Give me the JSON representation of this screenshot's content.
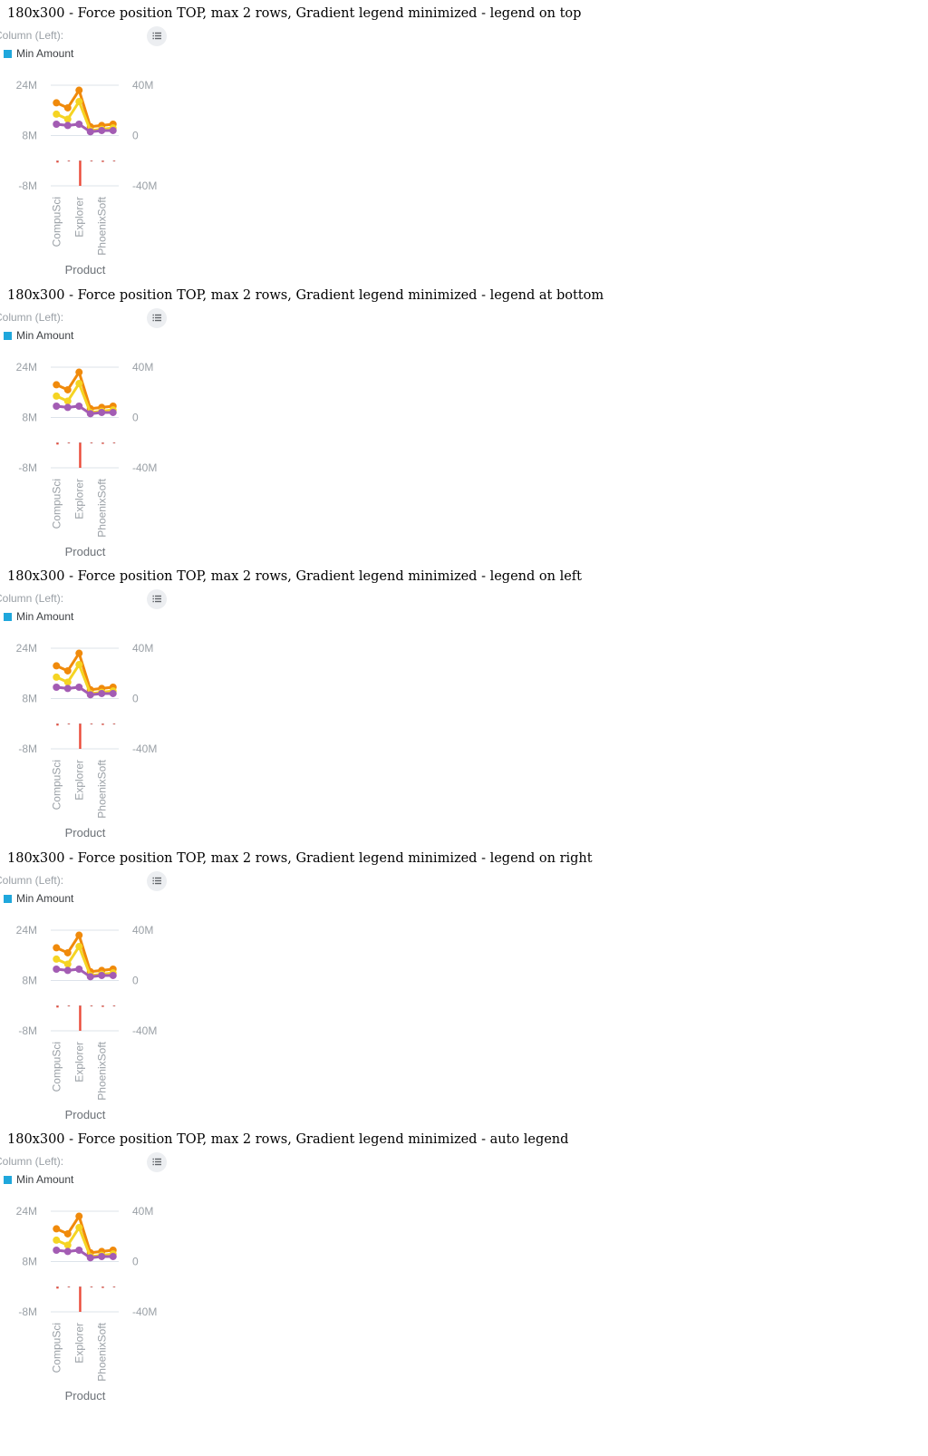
{
  "colors": {
    "min_amount": "#1fa7dc",
    "orange": "#f08a0b",
    "yellow": "#f5d423",
    "purple": "#a35cb3",
    "red": "#ea4a38",
    "gridline": "#dde3ea",
    "tick_text": "#9aa0a6",
    "axis_title": "#6d7278"
  },
  "icons": {
    "legend_button": "legend-list-icon"
  },
  "panels": [
    {
      "title": "180x300 - Force position TOP, max 2 rows, Gradient legend minimized - legend on top"
    },
    {
      "title": "180x300 - Force position TOP, max 2 rows, Gradient legend minimized - legend at bottom"
    },
    {
      "title": "180x300 - Force position TOP, max 2 rows, Gradient legend minimized - legend on left"
    },
    {
      "title": "180x300 - Force position TOP, max 2 rows, Gradient legend minimized - legend on right"
    },
    {
      "title": "180x300 - Force position TOP, max 2 rows, Gradient legend minimized - auto legend"
    }
  ],
  "legend": {
    "header": "Column (Left):",
    "items": [
      "Min Amount"
    ]
  },
  "chart_data": {
    "type": "bar",
    "categories": [
      "CompuSci",
      "",
      "Explorer",
      "",
      "PhoenixSoft",
      ""
    ],
    "xlabel": "Product",
    "ylim_left": [
      -8000000,
      24000000
    ],
    "ylim_right": [
      -40000000,
      40000000
    ],
    "yticks_left": [
      "24M",
      "8M",
      "-8M"
    ],
    "yticks_right": [
      "40M",
      "0",
      "-40M"
    ],
    "grid": true,
    "legend_position": "top",
    "bars": [
      {
        "axis": "left",
        "name": "Min Amount",
        "color": "#1fa7dc",
        "values": [
          0,
          0,
          0,
          0,
          0,
          0
        ]
      },
      {
        "axis": "left",
        "color": "#ea4a38",
        "values": [
          -0.6,
          -0.05,
          -8,
          -0.05,
          -0.4,
          -0.05
        ]
      }
    ],
    "lines": [
      {
        "axis": "right",
        "color": "#f08a0b",
        "values": [
          26,
          22,
          36,
          7,
          8,
          9
        ]
      },
      {
        "axis": "right",
        "color": "#f5d423",
        "values": [
          17,
          13,
          27,
          4,
          5,
          6
        ]
      },
      {
        "axis": "right",
        "color": "#a35cb3",
        "values": [
          9,
          8,
          9,
          3,
          4,
          4
        ]
      }
    ]
  }
}
